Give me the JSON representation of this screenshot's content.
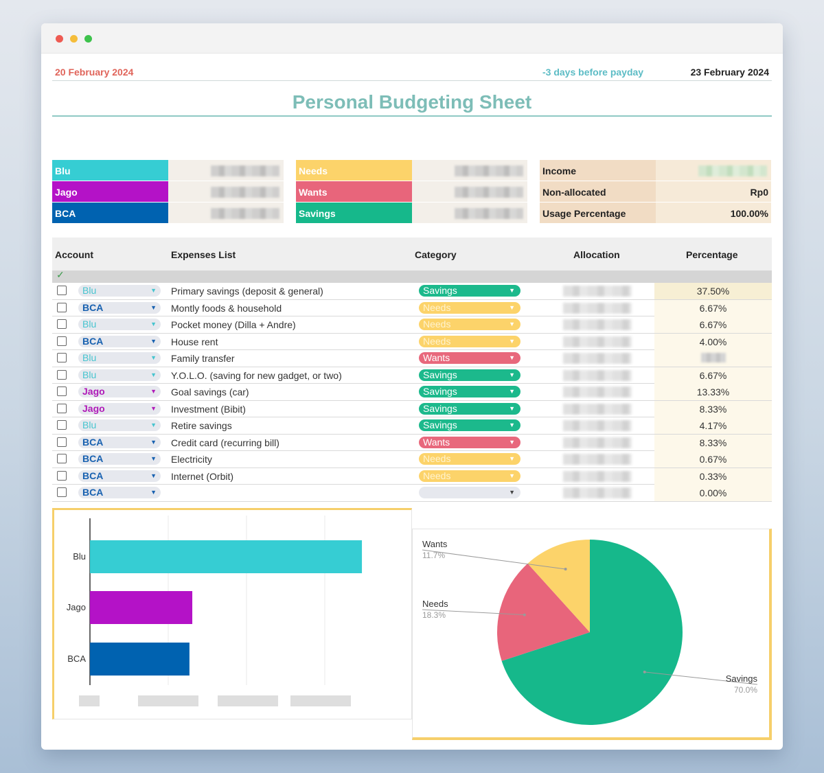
{
  "header": {
    "date_left": "20 February 2024",
    "payday_note": "-3 days before payday",
    "date_right": "23 February 2024",
    "title": "Personal Budgeting Sheet"
  },
  "accounts_summary": [
    {
      "label": "Blu",
      "color": "#36cdd3"
    },
    {
      "label": "Jago",
      "color": "#b412c7"
    },
    {
      "label": "BCA",
      "color": "#0062b0"
    }
  ],
  "categories_summary": [
    {
      "label": "Needs",
      "color": "#fcd36a"
    },
    {
      "label": "Wants",
      "color": "#e8657b"
    },
    {
      "label": "Savings",
      "color": "#16b88b"
    }
  ],
  "totals": {
    "income_label": "Income",
    "nonallocated_label": "Non-allocated",
    "nonallocated_value": "Rp0",
    "usage_label": "Usage Percentage",
    "usage_value": "100.00%"
  },
  "table": {
    "headers": {
      "account": "Account",
      "expenses": "Expenses List",
      "category": "Category",
      "allocation": "Allocation",
      "percentage": "Percentage"
    },
    "rows": [
      {
        "account": "Blu",
        "expense": "Primary savings (deposit & general)",
        "category": "Savings",
        "percentage": "37.50%"
      },
      {
        "account": "BCA",
        "expense": "Montly foods & household",
        "category": "Needs",
        "percentage": "6.67%"
      },
      {
        "account": "Blu",
        "expense": "Pocket money (Dilla + Andre)",
        "category": "Needs",
        "percentage": "6.67%"
      },
      {
        "account": "BCA",
        "expense": "House rent",
        "category": "Needs",
        "percentage": "4.00%"
      },
      {
        "account": "Blu",
        "expense": "Family transfer",
        "category": "Wants",
        "percentage": ""
      },
      {
        "account": "Blu",
        "expense": "Y.O.L.O. (saving for new gadget, or two)",
        "category": "Savings",
        "percentage": "6.67%"
      },
      {
        "account": "Jago",
        "expense": "Goal savings (car)",
        "category": "Savings",
        "percentage": "13.33%"
      },
      {
        "account": "Jago",
        "expense": "Investment (Bibit)",
        "category": "Savings",
        "percentage": "8.33%"
      },
      {
        "account": "Blu",
        "expense": "Retire savings",
        "category": "Savings",
        "percentage": "4.17%"
      },
      {
        "account": "BCA",
        "expense": "Credit card (recurring bill)",
        "category": "Wants",
        "percentage": "8.33%"
      },
      {
        "account": "BCA",
        "expense": " Electricity",
        "category": "Needs",
        "percentage": "0.67%"
      },
      {
        "account": "BCA",
        "expense": "Internet (Orbit)",
        "category": "Needs",
        "percentage": "0.33%"
      },
      {
        "account": "BCA",
        "expense": "",
        "category": "",
        "percentage": "0.00%"
      }
    ]
  },
  "chart_data": [
    {
      "type": "bar",
      "orientation": "horizontal",
      "categories": [
        "Blu",
        "Jago",
        "BCA"
      ],
      "values": [
        0.574,
        0.216,
        0.21
      ],
      "colors": [
        "#36cdd3",
        "#b412c7",
        "#0062b0"
      ],
      "title": "",
      "note": "absolute amounts and x-axis tick labels are blurred; values are relative bar lengths"
    },
    {
      "type": "pie",
      "labels": [
        "Wants",
        "Needs",
        "Savings"
      ],
      "values": [
        11.7,
        18.3,
        70.0
      ],
      "value_labels": [
        "11.7%",
        "18.3%",
        "70.0%"
      ],
      "colors": [
        "#fcd36a",
        "#e8657b",
        "#16b88b"
      ]
    }
  ]
}
